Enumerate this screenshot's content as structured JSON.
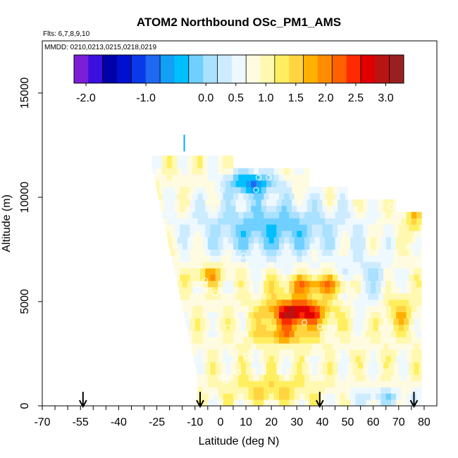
{
  "chart_data": {
    "type": "heatmap",
    "title": "ATOM2 Northbound OSc_PM1_AMS",
    "flights_label": "Flts: 6,7,8,9,10",
    "dates_label": "MMDD: 0210,0213,0215,0218,0219",
    "xlabel": "Latitude (deg N)",
    "ylabel": "Altitude (m)",
    "xlim": [
      -70,
      85
    ],
    "ylim": [
      0,
      17500
    ],
    "x_ticks": [
      -70,
      -55,
      -40,
      -25,
      -10,
      0,
      10,
      20,
      30,
      40,
      50,
      60,
      70,
      80
    ],
    "y_ticks": [
      0,
      5000,
      10000,
      15000
    ],
    "colorbar": {
      "min": -2.2,
      "max": 3.3,
      "tick_values": [
        -2.0,
        -1.0,
        0.0,
        0.5,
        1.0,
        1.5,
        2.0,
        2.5,
        3.0
      ],
      "tick_labels": [
        "-2.0",
        "-1.0",
        "0.0",
        "0.5",
        "1.0",
        "1.5",
        "2.0",
        "2.5",
        "3.0"
      ],
      "colors": [
        "#7a1fd6",
        "#3b0fe0",
        "#0000a8",
        "#0010d0",
        "#0a3ae8",
        "#1f68f2",
        "#129ff5",
        "#00bfff",
        "#6fd0ff",
        "#a9e1ff",
        "#cdebff",
        "#eef8ff",
        "#fffbe0",
        "#fff8b0",
        "#ffef60",
        "#ffd440",
        "#ffb000",
        "#ff8c00",
        "#ff6000",
        "#ff2a00",
        "#e00000",
        "#b81414",
        "#9a2020"
      ]
    },
    "arrow_latitudes": [
      -54,
      -8,
      39,
      76
    ],
    "legend_position": "top-center",
    "grid": false
  }
}
